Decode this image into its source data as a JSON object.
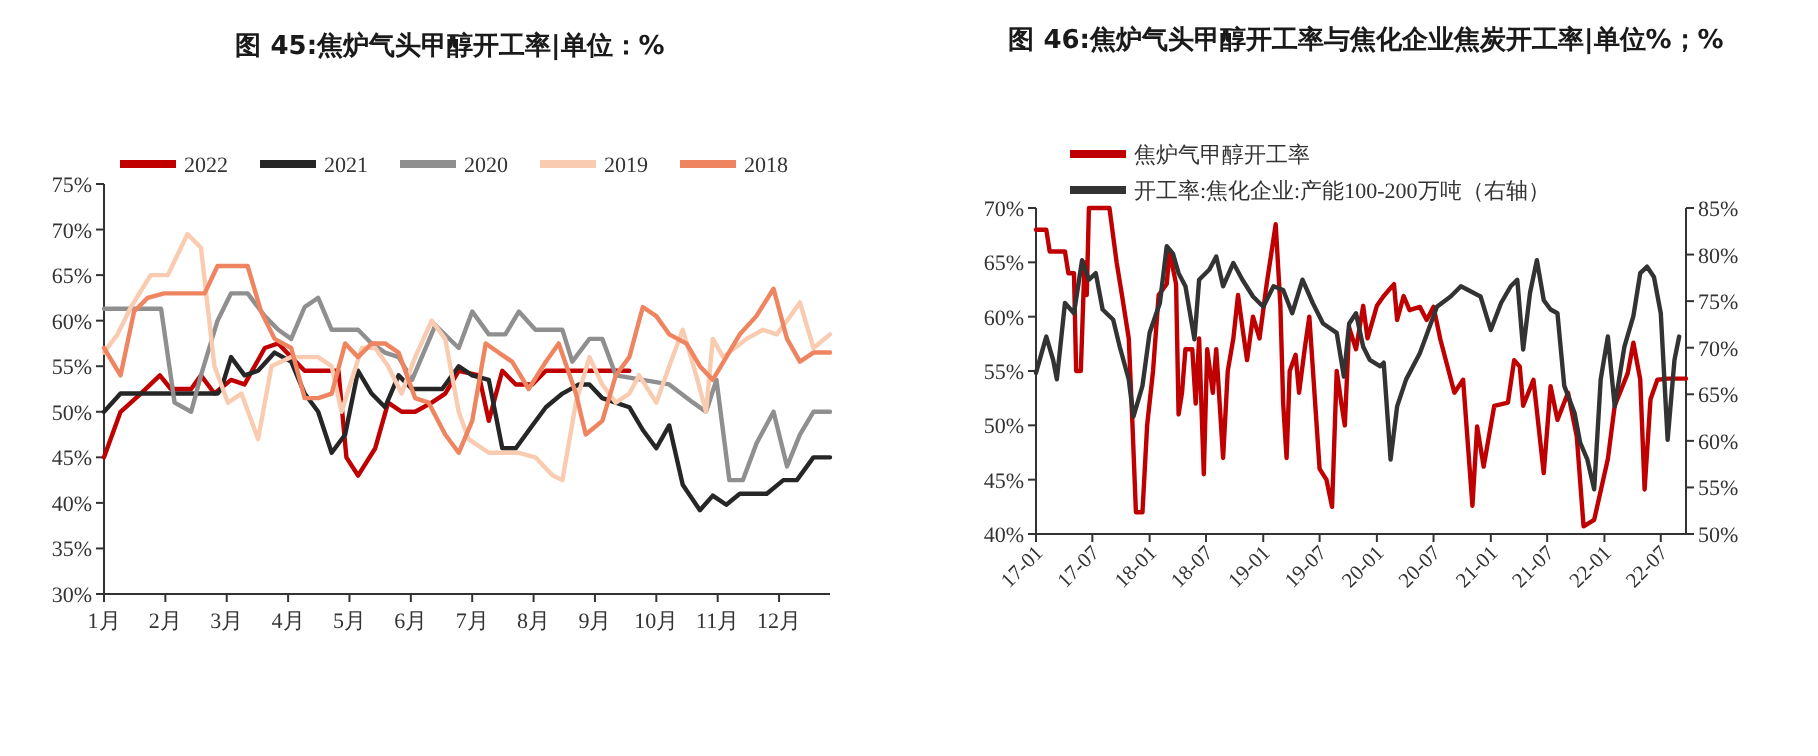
{
  "chart_data": [
    {
      "type": "line",
      "title": "图 45:焦炉气头甲醇开工率|单位：%",
      "legend": "top",
      "xlim": [
        1,
        12.83
      ],
      "ylim": [
        30,
        75
      ],
      "xticks": [
        {
          "value": 1,
          "label": "1月"
        },
        {
          "value": 2,
          "label": "2月"
        },
        {
          "value": 3,
          "label": "3月"
        },
        {
          "value": 4,
          "label": "4月"
        },
        {
          "value": 5,
          "label": "5月"
        },
        {
          "value": 6,
          "label": "6月"
        },
        {
          "value": 7,
          "label": "7月"
        },
        {
          "value": 8,
          "label": "8月"
        },
        {
          "value": 9,
          "label": "9月"
        },
        {
          "value": 10,
          "label": "10月"
        },
        {
          "value": 11,
          "label": "11月"
        },
        {
          "value": 12,
          "label": "12月"
        }
      ],
      "yticks": [
        {
          "value": 30,
          "label": "30%"
        },
        {
          "value": 35,
          "label": "35%"
        },
        {
          "value": 40,
          "label": "40%"
        },
        {
          "value": 45,
          "label": "45%"
        },
        {
          "value": 50,
          "label": "50%"
        },
        {
          "value": 55,
          "label": "55%"
        },
        {
          "value": 60,
          "label": "60%"
        },
        {
          "value": 65,
          "label": "65%"
        },
        {
          "value": 70,
          "label": "70%"
        },
        {
          "value": 75,
          "label": "75%"
        }
      ],
      "series": [
        {
          "name": "2022",
          "color": "#c00000",
          "x": [
            1,
            1.27,
            1.6,
            1.91,
            2.09,
            2.42,
            2.58,
            2.8,
            3.07,
            3.29,
            3.62,
            3.84,
            4.05,
            4.27,
            4.82,
            4.95,
            5.14,
            5.42,
            5.63,
            5.85,
            6.07,
            6.34,
            6.56,
            6.78,
            7.11,
            7.27,
            7.49,
            7.71,
            7.98,
            8.2,
            9.56
          ],
          "values": [
            45,
            50,
            52,
            54,
            52.5,
            52.5,
            54,
            52,
            53.5,
            53,
            57,
            57.5,
            56,
            54.5,
            54.5,
            45,
            43,
            46,
            51,
            50,
            50,
            51,
            52,
            54.5,
            54,
            49,
            54.5,
            53,
            53,
            54.5,
            54.5
          ]
        },
        {
          "name": "2021",
          "color": "#262626",
          "x": [
            1,
            1.27,
            2.85,
            2.91,
            3.07,
            3.29,
            3.51,
            3.78,
            4.05,
            4.27,
            4.49,
            4.71,
            4.93,
            5.14,
            5.36,
            5.58,
            5.8,
            6.02,
            6.51,
            6.78,
            7.0,
            7.27,
            7.49,
            7.71,
            7.98,
            8.2,
            8.47,
            8.74,
            8.91,
            9.12,
            9.34,
            9.56,
            9.78,
            10.0,
            10.21,
            10.43,
            10.71,
            10.92,
            11.14,
            11.36,
            11.8,
            12.07,
            12.29,
            12.56,
            12.83
          ],
          "values": [
            50,
            52,
            52,
            52.5,
            56,
            54,
            54.5,
            56.5,
            55.5,
            52,
            50,
            45.5,
            47.5,
            54.5,
            52,
            50.5,
            54,
            52.5,
            52.5,
            55,
            54,
            53.5,
            46,
            46,
            48.5,
            50.5,
            52,
            53,
            53,
            51.5,
            51,
            50.5,
            48,
            46,
            48.5,
            42,
            39.2,
            40.8,
            39.8,
            41,
            41,
            42.5,
            42.5,
            45,
            45
          ]
        },
        {
          "name": "2020",
          "color": "#8f8f8f",
          "x": [
            1,
            1.93,
            2.15,
            2.42,
            2.58,
            2.85,
            3.07,
            3.34,
            3.62,
            3.84,
            4.05,
            4.27,
            4.49,
            4.71,
            5.14,
            5.36,
            5.58,
            5.8,
            6.02,
            6.4,
            6.78,
            7.0,
            7.27,
            7.54,
            7.76,
            8.03,
            8.47,
            8.63,
            8.91,
            9.12,
            9.34,
            9.78,
            10.21,
            10.6,
            10.81,
            10.98,
            11.19,
            11.41,
            11.63,
            11.91,
            12.13,
            12.34,
            12.56,
            12.83
          ],
          "values": [
            61.3,
            61.3,
            51,
            50,
            54,
            60,
            63,
            63,
            60.5,
            59,
            58,
            61.5,
            62.5,
            59,
            59,
            57.5,
            56.5,
            56,
            53.5,
            59.5,
            57,
            61,
            58.5,
            58.5,
            61,
            59,
            59,
            55.5,
            58,
            58,
            54,
            53.5,
            53,
            51,
            50,
            53.5,
            42.5,
            42.5,
            46.5,
            50,
            44,
            47.5,
            50,
            50
          ]
        },
        {
          "name": "2019",
          "color": "#f9cbb0",
          "x": [
            1,
            1.22,
            1.44,
            1.76,
            2.04,
            2.36,
            2.58,
            2.8,
            3.02,
            3.24,
            3.51,
            3.73,
            4.05,
            4.49,
            4.71,
            4.87,
            5.2,
            5.42,
            5.63,
            5.85,
            6.07,
            6.34,
            6.56,
            6.78,
            6.94,
            7.27,
            7.76,
            8.03,
            8.31,
            8.47,
            8.69,
            8.91,
            9.12,
            9.34,
            9.56,
            9.72,
            10.0,
            10.21,
            10.43,
            10.65,
            10.81,
            10.92,
            11.09,
            11.47,
            11.74,
            11.96,
            12.13,
            12.34,
            12.56,
            12.83
          ],
          "values": [
            56.5,
            58.5,
            61.5,
            65,
            65,
            69.5,
            68,
            55,
            51,
            52,
            47,
            55,
            56,
            56,
            55,
            50,
            57,
            57,
            55,
            52,
            56,
            60,
            58,
            50,
            47,
            45.5,
            45.5,
            45,
            43,
            42.5,
            51,
            56,
            53,
            51,
            52,
            54,
            51,
            55,
            59,
            54,
            50,
            58,
            56,
            58,
            59,
            58.5,
            60,
            62,
            57,
            58.5
          ]
        },
        {
          "name": "2018",
          "color": "#ee8560",
          "x": [
            1,
            1.27,
            1.49,
            1.71,
            1.98,
            2.64,
            2.85,
            3.34,
            3.56,
            3.78,
            4.05,
            4.27,
            4.49,
            4.71,
            4.93,
            5.14,
            5.36,
            5.58,
            5.8,
            6.07,
            6.29,
            6.56,
            6.78,
            7.0,
            7.22,
            7.43,
            7.65,
            7.92,
            8.2,
            8.41,
            8.69,
            8.85,
            9.12,
            9.34,
            9.56,
            9.78,
            10.0,
            10.21,
            10.49,
            10.71,
            10.92,
            11.14,
            11.36,
            11.63,
            11.91,
            12.13,
            12.34,
            12.56,
            12.83
          ],
          "values": [
            57,
            54,
            61,
            62.5,
            63,
            63,
            66,
            66,
            61,
            58,
            57,
            51.5,
            51.5,
            52,
            57.5,
            56,
            57.5,
            57.5,
            56.5,
            51.5,
            51,
            47.5,
            45.5,
            49,
            57.5,
            56.5,
            55.5,
            52.5,
            55.5,
            57.5,
            52,
            47.5,
            49,
            54,
            56,
            61.5,
            60.5,
            58.5,
            57.5,
            55,
            53.5,
            56,
            58.5,
            60.5,
            63.5,
            58,
            55.5,
            56.5,
            56.5
          ]
        }
      ]
    },
    {
      "type": "line",
      "title": "图 46:焦炉气头甲醇开工率与焦化企业焦炭开工率|单位%；%",
      "legend": "top left",
      "xlim": [
        "2017-01-01",
        "2022-09-20"
      ],
      "ylim": [
        40,
        70
      ],
      "y2lim": [
        50,
        85
      ],
      "xticks": [
        {
          "value": "2017-01",
          "label": "17-01"
        },
        {
          "value": "2017-07",
          "label": "17-07"
        },
        {
          "value": "2018-01",
          "label": "18-01"
        },
        {
          "value": "2018-07",
          "label": "18-07"
        },
        {
          "value": "2019-01",
          "label": "19-01"
        },
        {
          "value": "2019-07",
          "label": "19-07"
        },
        {
          "value": "2020-01",
          "label": "20-01"
        },
        {
          "value": "2020-07",
          "label": "20-07"
        },
        {
          "value": "2021-01",
          "label": "21-01"
        },
        {
          "value": "2021-07",
          "label": "21-07"
        },
        {
          "value": "2022-01",
          "label": "22-01"
        },
        {
          "value": "2022-07",
          "label": "22-07"
        }
      ],
      "yticks": [
        {
          "value": 40,
          "label": "40%"
        },
        {
          "value": 45,
          "label": "45%"
        },
        {
          "value": 50,
          "label": "50%"
        },
        {
          "value": 55,
          "label": "55%"
        },
        {
          "value": 60,
          "label": "60%"
        },
        {
          "value": 65,
          "label": "65%"
        },
        {
          "value": 70,
          "label": "70%"
        }
      ],
      "y2ticks": [
        {
          "value": 50,
          "label": "50%"
        },
        {
          "value": 55,
          "label": "55%"
        },
        {
          "value": 60,
          "label": "60%"
        },
        {
          "value": 65,
          "label": "65%"
        },
        {
          "value": 70,
          "label": "70%"
        },
        {
          "value": 75,
          "label": "75%"
        },
        {
          "value": 80,
          "label": "80%"
        },
        {
          "value": 85,
          "label": "85%"
        }
      ],
      "series": [
        {
          "name": "焦炉气甲醇开工率",
          "color": "#c00000",
          "x": [
            "2017-01-01",
            "2017-02-03",
            "2017-02-14",
            "2017-04-04",
            "2017-04-15",
            "2017-05-03",
            "2017-05-10",
            "2017-05-25",
            "2017-06-06",
            "2017-06-13",
            "2017-06-20",
            "2017-08-25",
            "2017-09-17",
            "2017-10-04",
            "2017-10-26",
            "2017-11-07",
            "2017-11-18",
            "2017-12-09",
            "2017-12-24",
            "2018-01-12",
            "2018-01-30",
            "2018-02-25",
            "2018-03-06",
            "2018-03-27",
            "2018-04-04",
            "2018-04-15",
            "2018-04-26",
            "2018-05-18",
            "2018-05-29",
            "2018-06-09",
            "2018-06-24",
            "2018-07-05",
            "2018-07-23",
            "2018-08-03",
            "2018-08-25",
            "2018-09-09",
            "2018-09-27",
            "2018-10-12",
            "2018-10-26",
            "2018-11-10",
            "2018-11-29",
            "2018-12-20",
            "2019-01-12",
            "2019-02-10",
            "2019-02-25",
            "2019-03-06",
            "2019-03-17",
            "2019-03-27",
            "2019-04-15",
            "2019-04-26",
            "2019-05-14",
            "2019-05-29",
            "2019-07-01",
            "2019-07-23",
            "2019-08-10",
            "2019-08-25",
            "2019-09-09",
            "2019-09-20",
            "2019-10-04",
            "2019-10-26",
            "2019-11-18",
            "2019-12-02",
            "2020-01-01",
            "2020-01-23",
            "2020-02-25",
            "2020-03-06",
            "2020-03-27",
            "2020-04-15",
            "2020-05-18",
            "2020-06-09",
            "2020-07-01",
            "2020-07-23",
            "2020-09-06",
            "2020-10-04",
            "2020-11-03",
            "2020-11-18",
            "2020-12-09",
            "2021-01-12",
            "2021-02-25",
            "2021-03-17",
            "2021-04-04",
            "2021-04-15",
            "2021-05-18",
            "2021-06-20",
            "2021-07-12",
            "2021-08-03",
            "2021-09-06",
            "2021-10-04",
            "2021-10-26",
            "2021-11-29",
            "2022-01-12",
            "2022-02-03",
            "2022-03-17",
            "2022-04-04",
            "2022-04-26",
            "2022-05-10",
            "2022-05-29",
            "2022-06-20",
            "2022-07-23",
            "2022-09-20"
          ],
          "values": [
            68,
            68,
            66,
            66,
            64,
            64,
            55,
            55,
            65,
            62,
            70,
            70,
            65,
            62,
            58,
            50,
            42,
            42,
            50,
            55,
            62,
            63,
            66,
            63,
            51,
            53,
            57,
            57,
            52,
            58,
            45.5,
            57,
            53,
            57,
            47,
            55,
            58,
            62,
            59,
            56,
            60,
            58,
            63,
            68.5,
            61,
            52,
            47,
            55,
            56.5,
            53,
            57,
            60,
            46,
            45,
            42.5,
            55,
            52,
            50,
            59,
            57,
            61,
            58,
            61,
            61.9,
            63,
            59.7,
            61.9,
            60.6,
            60.9,
            59.7,
            60.9,
            57.9,
            53,
            54.2,
            42.6,
            49.9,
            46.2,
            51.8,
            52.1,
            56,
            55.4,
            51.8,
            54.2,
            45.6,
            53.6,
            50.5,
            53,
            49,
            40.7,
            41.3,
            46.9,
            51.8,
            54.8,
            57.6,
            54.2,
            44.1,
            52.4,
            54.2,
            54.3,
            54.3
          ]
        },
        {
          "name": "开工率:焦化企业:产能100-200万吨（右轴）",
          "color": "#333333",
          "axis": "y2",
          "x": [
            "2017-01-01",
            "2017-02-03",
            "2017-02-25",
            "2017-03-09",
            "2017-04-04",
            "2017-05-03",
            "2017-05-29",
            "2017-06-20",
            "2017-07-12",
            "2017-08-03",
            "2017-09-06",
            "2017-09-27",
            "2017-10-26",
            "2017-11-10",
            "2017-12-09",
            "2018-01-01",
            "2018-02-03",
            "2018-02-25",
            "2018-03-17",
            "2018-04-04",
            "2018-04-26",
            "2018-05-25",
            "2018-06-09",
            "2018-07-12",
            "2018-08-03",
            "2018-08-25",
            "2018-09-27",
            "2018-10-26",
            "2018-11-29",
            "2019-01-01",
            "2019-02-03",
            "2019-03-06",
            "2019-04-04",
            "2019-05-07",
            "2019-06-09",
            "2019-07-12",
            "2019-08-25",
            "2019-09-17",
            "2019-10-04",
            "2019-10-26",
            "2019-11-18",
            "2019-12-09",
            "2020-01-12",
            "2020-01-23",
            "2020-02-14",
            "2020-03-06",
            "2020-04-04",
            "2020-05-18",
            "2020-07-12",
            "2020-08-25",
            "2020-09-27",
            "2020-11-29",
            "2021-01-01",
            "2021-02-03",
            "2021-03-06",
            "2021-03-27",
            "2021-04-15",
            "2021-05-07",
            "2021-05-29",
            "2021-06-20",
            "2021-07-12",
            "2021-08-03",
            "2021-08-25",
            "2021-09-27",
            "2021-10-15",
            "2021-11-07",
            "2021-11-29",
            "2021-12-20",
            "2022-01-12",
            "2022-02-03",
            "2022-03-06",
            "2022-04-04",
            "2022-04-26",
            "2022-05-18",
            "2022-06-09",
            "2022-07-01",
            "2022-07-23",
            "2022-08-14",
            "2022-08-29"
          ],
          "values": [
            67.3,
            71.2,
            68.7,
            66.6,
            74.8,
            73.7,
            79.4,
            77.3,
            78,
            74.1,
            73,
            70.1,
            66.6,
            62.6,
            65.9,
            71.6,
            74.8,
            80.9,
            80.1,
            78,
            76.6,
            70.9,
            77.3,
            78.4,
            79.8,
            76.6,
            79.1,
            77.3,
            75.5,
            74.4,
            76.6,
            76.2,
            73.7,
            77.3,
            74.8,
            72.6,
            71.6,
            66.9,
            72.6,
            73.7,
            70.1,
            68.7,
            68,
            68.4,
            58,
            63.7,
            66.6,
            69.4,
            74.4,
            75.5,
            76.6,
            75.5,
            71.9,
            74.8,
            76.6,
            77.3,
            69.8,
            75.9,
            79.4,
            75.1,
            74.1,
            73.7,
            65.9,
            63,
            59.8,
            58,
            54.8,
            66.6,
            71.2,
            63.7,
            70.1,
            73.4,
            78,
            78.7,
            77.6,
            73.7,
            60.1,
            68.7,
            71.2
          ]
        }
      ]
    }
  ]
}
